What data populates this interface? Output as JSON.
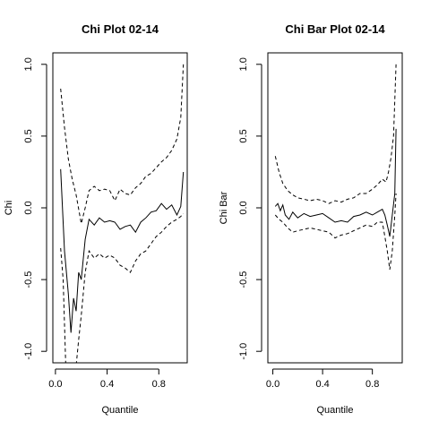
{
  "chart_data": [
    {
      "type": "line",
      "title": "Chi Plot 02-14",
      "xlabel": "Quantile",
      "ylabel": "Chi",
      "xlim": [
        0.0,
        1.0
      ],
      "ylim": [
        -1.0,
        1.0
      ],
      "xticks": [
        0.0,
        0.4,
        0.8
      ],
      "yticks": [
        -1.0,
        -0.5,
        0.0,
        0.5,
        1.0
      ],
      "xtick_labels": [
        "0.0",
        "0.4",
        "0.8"
      ],
      "ytick_labels": [
        "-1.0",
        "-0.5",
        "0.0",
        "0.5",
        "1.0"
      ],
      "grid": false,
      "series": [
        {
          "style": "dashed",
          "x": [
            0.04,
            0.07,
            0.1,
            0.13,
            0.16,
            0.2,
            0.23,
            0.26,
            0.3,
            0.34,
            0.38,
            0.42,
            0.46,
            0.5,
            0.54,
            0.58,
            0.62,
            0.66,
            0.7,
            0.74,
            0.78,
            0.82,
            0.86,
            0.9,
            0.94,
            0.97,
            0.99
          ],
          "y": [
            0.83,
            0.56,
            0.34,
            0.2,
            0.09,
            -0.11,
            0.0,
            0.12,
            0.15,
            0.12,
            0.13,
            0.12,
            0.05,
            0.13,
            0.1,
            0.09,
            0.14,
            0.17,
            0.22,
            0.24,
            0.28,
            0.32,
            0.35,
            0.4,
            0.48,
            0.63,
            1.0
          ]
        },
        {
          "style": "solid",
          "x": [
            0.04,
            0.07,
            0.1,
            0.12,
            0.14,
            0.16,
            0.18,
            0.2,
            0.23,
            0.26,
            0.3,
            0.34,
            0.38,
            0.42,
            0.46,
            0.5,
            0.54,
            0.58,
            0.62,
            0.66,
            0.7,
            0.74,
            0.78,
            0.82,
            0.86,
            0.9,
            0.94,
            0.97,
            0.99
          ],
          "y": [
            0.27,
            -0.3,
            -0.6,
            -0.87,
            -0.63,
            -0.72,
            -0.45,
            -0.5,
            -0.22,
            -0.08,
            -0.12,
            -0.07,
            -0.1,
            -0.09,
            -0.1,
            -0.15,
            -0.13,
            -0.12,
            -0.17,
            -0.1,
            -0.07,
            -0.03,
            -0.02,
            0.03,
            -0.01,
            0.02,
            -0.05,
            0.01,
            0.25
          ]
        },
        {
          "style": "dashed",
          "x": [
            0.04,
            0.06,
            0.08,
            0.1,
            0.12,
            0.14,
            0.16,
            0.18,
            0.2,
            0.23,
            0.26,
            0.3,
            0.34,
            0.38,
            0.42,
            0.46,
            0.5,
            0.54,
            0.58,
            0.62,
            0.66,
            0.7,
            0.74,
            0.78,
            0.82,
            0.86,
            0.9,
            0.94,
            0.97,
            0.99
          ],
          "y": [
            -0.28,
            -0.5,
            -1.1,
            -1.2,
            -1.25,
            -1.2,
            -1.1,
            -0.92,
            -0.75,
            -0.45,
            -0.3,
            -0.35,
            -0.32,
            -0.35,
            -0.33,
            -0.35,
            -0.4,
            -0.42,
            -0.45,
            -0.37,
            -0.32,
            -0.3,
            -0.25,
            -0.2,
            -0.17,
            -0.13,
            -0.1,
            -0.08,
            -0.06,
            -0.04
          ]
        }
      ]
    },
    {
      "type": "line",
      "title": "Chi Bar Plot 02-14",
      "xlabel": "Quantile",
      "ylabel": "Chi Bar",
      "xlim": [
        0.0,
        1.0
      ],
      "ylim": [
        -1.0,
        1.0
      ],
      "xticks": [
        0.0,
        0.4,
        0.8
      ],
      "yticks": [
        -1.0,
        -0.5,
        0.0,
        0.5,
        1.0
      ],
      "xtick_labels": [
        "0.0",
        "0.4",
        "0.8"
      ],
      "ytick_labels": [
        "-1.0",
        "-0.5",
        "0.0",
        "0.5",
        "1.0"
      ],
      "grid": false,
      "series": [
        {
          "style": "dashed",
          "x": [
            0.02,
            0.05,
            0.08,
            0.12,
            0.16,
            0.2,
            0.25,
            0.3,
            0.35,
            0.4,
            0.45,
            0.5,
            0.55,
            0.6,
            0.65,
            0.7,
            0.75,
            0.8,
            0.84,
            0.88,
            0.91,
            0.93,
            0.95,
            0.97,
            0.99
          ],
          "y": [
            0.36,
            0.25,
            0.17,
            0.12,
            0.09,
            0.07,
            0.06,
            0.05,
            0.06,
            0.05,
            0.03,
            0.05,
            0.04,
            0.06,
            0.07,
            0.1,
            0.1,
            0.13,
            0.16,
            0.2,
            0.18,
            0.25,
            0.35,
            0.5,
            1.0
          ]
        },
        {
          "style": "solid",
          "x": [
            0.02,
            0.04,
            0.06,
            0.08,
            0.1,
            0.13,
            0.16,
            0.2,
            0.25,
            0.3,
            0.35,
            0.4,
            0.45,
            0.5,
            0.55,
            0.6,
            0.65,
            0.7,
            0.75,
            0.8,
            0.84,
            0.88,
            0.9,
            0.92,
            0.94,
            0.96,
            0.98,
            0.99
          ],
          "y": [
            0.01,
            0.03,
            -0.02,
            0.02,
            -0.05,
            -0.08,
            -0.03,
            -0.07,
            -0.04,
            -0.06,
            -0.05,
            -0.04,
            -0.07,
            -0.1,
            -0.09,
            -0.1,
            -0.06,
            -0.05,
            -0.03,
            -0.05,
            -0.03,
            -0.01,
            -0.05,
            -0.12,
            -0.2,
            -0.05,
            0.1,
            0.55
          ]
        },
        {
          "style": "dashed",
          "x": [
            0.02,
            0.05,
            0.08,
            0.12,
            0.16,
            0.2,
            0.25,
            0.3,
            0.35,
            0.4,
            0.45,
            0.5,
            0.55,
            0.6,
            0.65,
            0.7,
            0.75,
            0.8,
            0.84,
            0.88,
            0.9,
            0.92,
            0.94,
            0.96,
            0.98,
            0.99
          ],
          "y": [
            -0.05,
            -0.08,
            -0.1,
            -0.14,
            -0.17,
            -0.16,
            -0.15,
            -0.14,
            -0.15,
            -0.16,
            -0.17,
            -0.21,
            -0.19,
            -0.18,
            -0.16,
            -0.14,
            -0.12,
            -0.13,
            -0.1,
            -0.1,
            -0.2,
            -0.3,
            -0.43,
            -0.3,
            -0.05,
            0.1
          ]
        }
      ]
    }
  ]
}
